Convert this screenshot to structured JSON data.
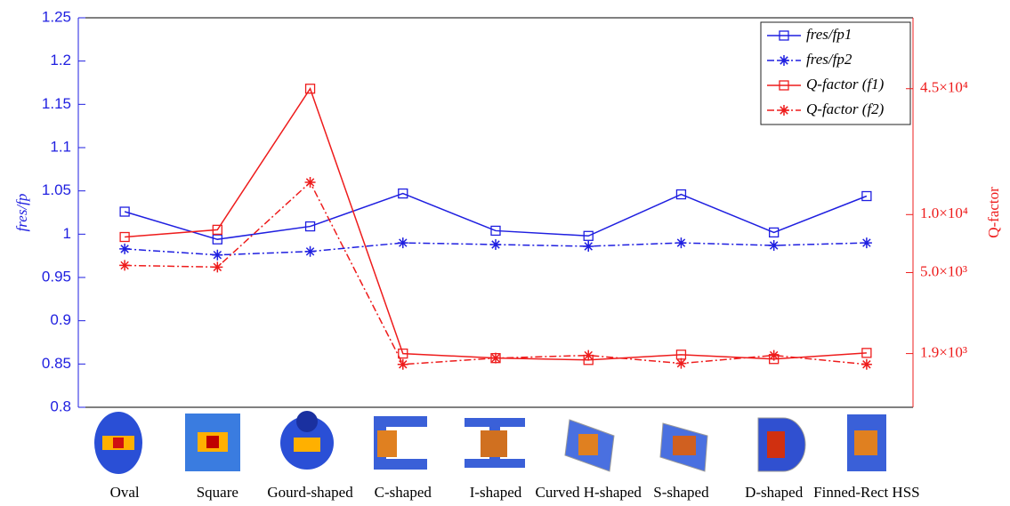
{
  "chart_data": {
    "type": "line",
    "ylabel": "fres/fp",
    "y2label": "Q-factor",
    "categories": [
      "Oval",
      "Square",
      "Gourd-shaped",
      "C-shaped",
      "I-shaped",
      "Curved H-shaped",
      "S-shaped",
      "D-shaped",
      "Finned-Rect HSS"
    ],
    "ylim": [
      0.8,
      1.25
    ],
    "yticks": [
      0.8,
      0.85,
      0.9,
      0.95,
      1,
      1.05,
      1.1,
      1.15,
      1.2,
      1.25
    ],
    "y2lim": [
      1000,
      105000
    ],
    "y2scale": "log",
    "y2ticks": [
      {
        "value": 1900,
        "label": "1.9×10³"
      },
      {
        "value": 5000,
        "label": "5.0×10³"
      },
      {
        "value": 10000,
        "label": "1.0×10⁴"
      },
      {
        "value": 45000,
        "label": "4.5×10⁴"
      }
    ],
    "legend": "upper right",
    "series": [
      {
        "name": "fres/fp1",
        "color": "#1f1fe0",
        "marker": "square",
        "dash": "solid",
        "values": [
          1.026,
          0.994,
          1.009,
          1.047,
          1.004,
          0.998,
          1.046,
          1.002,
          1.044
        ]
      },
      {
        "name": "fres/fp2",
        "color": "#1f1fe0",
        "marker": "star",
        "dash": "dashdot",
        "values": [
          0.983,
          0.976,
          0.98,
          0.99,
          0.988,
          0.986,
          0.99,
          0.987,
          0.99
        ]
      },
      {
        "name": "Q-factor (f1)",
        "color": "#ee1c1c",
        "marker": "square",
        "dash": "solid",
        "axis": "y2",
        "values": [
          7650,
          8340,
          45000,
          1900,
          1800,
          1760,
          1875,
          1780,
          1915
        ]
      },
      {
        "name": "Q-factor (f2)",
        "color": "#ee1c1c",
        "marker": "star",
        "dash": "dashdot",
        "axis": "y2",
        "values": [
          5450,
          5340,
          14700,
          1670,
          1800,
          1860,
          1690,
          1860,
          1670
        ]
      }
    ]
  }
}
